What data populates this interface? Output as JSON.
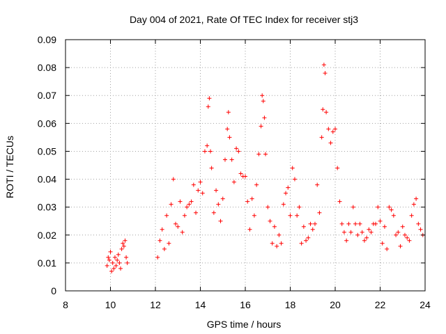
{
  "chart_data": {
    "type": "scatter",
    "title": "Day 004 of 2021, Rate Of TEC Index for receiver stj3",
    "xlabel": "GPS time / hours",
    "ylabel": "ROTI / TECUs",
    "xlim": [
      8,
      24
    ],
    "ylim": [
      0,
      0.09
    ],
    "x_ticks": [
      8,
      10,
      12,
      14,
      16,
      18,
      20,
      22,
      24
    ],
    "x_tick_labels": [
      "8",
      "10",
      "12",
      "14",
      "16",
      "18",
      "20",
      "22",
      "24"
    ],
    "y_ticks": [
      0,
      0.01,
      0.02,
      0.03,
      0.04,
      0.05,
      0.06,
      0.07,
      0.08,
      0.09
    ],
    "y_tick_labels": [
      "0",
      "0.01",
      "0.02",
      "0.03",
      "0.04",
      "0.05",
      "0.06",
      "0.07",
      "0.08",
      "0.09"
    ],
    "grid": true,
    "marker": "+",
    "marker_color": "#ff0000",
    "series": [
      {
        "name": "ROTI",
        "x": [
          9.85,
          9.9,
          9.95,
          10.0,
          10.05,
          10.1,
          10.15,
          10.2,
          10.25,
          10.3,
          10.35,
          10.4,
          10.45,
          10.5,
          10.55,
          10.6,
          10.65,
          10.7,
          10.75,
          12.1,
          12.2,
          12.3,
          12.4,
          12.5,
          12.6,
          12.7,
          12.8,
          12.9,
          13.0,
          13.1,
          13.2,
          13.3,
          13.4,
          13.5,
          13.6,
          13.7,
          13.8,
          13.9,
          14.0,
          14.1,
          14.2,
          14.3,
          14.35,
          14.4,
          14.45,
          14.5,
          14.6,
          14.7,
          14.8,
          14.9,
          15.0,
          15.1,
          15.2,
          15.25,
          15.3,
          15.4,
          15.5,
          15.6,
          15.7,
          15.8,
          15.9,
          16.0,
          16.1,
          16.2,
          16.3,
          16.4,
          16.5,
          16.6,
          16.7,
          16.75,
          16.8,
          16.85,
          16.9,
          17.0,
          17.1,
          17.2,
          17.3,
          17.4,
          17.5,
          17.6,
          17.7,
          17.8,
          17.9,
          18.0,
          18.1,
          18.2,
          18.3,
          18.4,
          18.5,
          18.6,
          18.7,
          18.8,
          18.9,
          19.0,
          19.1,
          19.2,
          19.3,
          19.4,
          19.45,
          19.5,
          19.55,
          19.6,
          19.7,
          19.8,
          19.9,
          20.0,
          20.1,
          20.2,
          20.3,
          20.4,
          20.5,
          20.6,
          20.7,
          20.8,
          20.9,
          21.0,
          21.1,
          21.2,
          21.3,
          21.4,
          21.5,
          21.6,
          21.7,
          21.8,
          21.9,
          22.0,
          22.1,
          22.2,
          22.3,
          22.4,
          22.5,
          22.6,
          22.7,
          22.8,
          22.9,
          23.0,
          23.1,
          23.2,
          23.3,
          23.4,
          23.5,
          23.6,
          23.7,
          23.8,
          23.9
        ],
        "y": [
          0.009,
          0.012,
          0.011,
          0.014,
          0.007,
          0.01,
          0.008,
          0.012,
          0.009,
          0.011,
          0.013,
          0.01,
          0.008,
          0.015,
          0.017,
          0.016,
          0.018,
          0.012,
          0.01,
          0.012,
          0.018,
          0.022,
          0.015,
          0.027,
          0.017,
          0.031,
          0.04,
          0.024,
          0.023,
          0.032,
          0.021,
          0.027,
          0.03,
          0.031,
          0.032,
          0.038,
          0.028,
          0.036,
          0.039,
          0.035,
          0.05,
          0.052,
          0.066,
          0.069,
          0.05,
          0.044,
          0.028,
          0.036,
          0.031,
          0.025,
          0.033,
          0.047,
          0.058,
          0.064,
          0.055,
          0.047,
          0.039,
          0.051,
          0.05,
          0.042,
          0.041,
          0.041,
          0.032,
          0.022,
          0.033,
          0.027,
          0.038,
          0.049,
          0.059,
          0.07,
          0.068,
          0.062,
          0.049,
          0.03,
          0.025,
          0.017,
          0.023,
          0.016,
          0.02,
          0.017,
          0.031,
          0.035,
          0.037,
          0.027,
          0.044,
          0.04,
          0.027,
          0.03,
          0.017,
          0.023,
          0.018,
          0.019,
          0.024,
          0.022,
          0.024,
          0.038,
          0.028,
          0.055,
          0.065,
          0.081,
          0.078,
          0.064,
          0.058,
          0.053,
          0.057,
          0.058,
          0.044,
          0.032,
          0.024,
          0.021,
          0.018,
          0.024,
          0.021,
          0.03,
          0.024,
          0.02,
          0.024,
          0.021,
          0.018,
          0.019,
          0.022,
          0.021,
          0.024,
          0.024,
          0.03,
          0.025,
          0.017,
          0.023,
          0.015,
          0.03,
          0.029,
          0.027,
          0.02,
          0.021,
          0.016,
          0.023,
          0.02,
          0.019,
          0.018,
          0.027,
          0.031,
          0.033,
          0.024,
          0.022,
          0.02
        ]
      }
    ]
  }
}
